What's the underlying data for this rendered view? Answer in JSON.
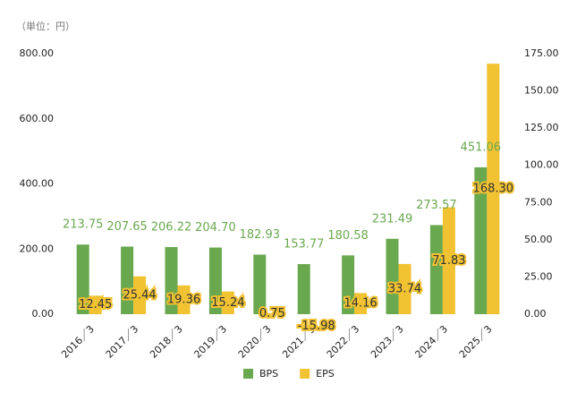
{
  "chart_data": {
    "type": "bar",
    "subtitle": "（単位：円）",
    "categories": [
      "2016／3",
      "2017／3",
      "2018／3",
      "2019／3",
      "2020／3",
      "2021／3",
      "2022／3",
      "2023／3",
      "2024／3",
      "2025／3"
    ],
    "series": [
      {
        "name": "BPS",
        "color": "#6aa84f",
        "values": [
          213.75,
          207.65,
          206.22,
          204.7,
          182.93,
          153.77,
          180.58,
          231.49,
          273.57,
          451.06
        ],
        "value_labels": [
          "213.75",
          "207.65",
          "206.22",
          "204.70",
          "182.93",
          "153.77",
          "180.58",
          "231.49",
          "273.57",
          "451.06"
        ]
      },
      {
        "name": "EPS",
        "color": "#f1c232",
        "axis": "y2",
        "values": [
          12.45,
          25.44,
          19.36,
          15.24,
          0.75,
          -15.98,
          14.16,
          33.74,
          71.83,
          168.3
        ],
        "value_labels": [
          "12.45",
          "25.44",
          "19.36",
          "15.24",
          "0.75",
          "-15.98",
          "14.16",
          "33.74",
          "71.83",
          "168.30"
        ]
      }
    ],
    "ylim": [
      0,
      800
    ],
    "yticks": [
      {
        "value": 0,
        "label": "0.00"
      },
      {
        "value": 200,
        "label": "200.00"
      },
      {
        "value": 400,
        "label": "400.00"
      },
      {
        "value": 600,
        "label": "600.00"
      },
      {
        "value": 800,
        "label": "800.00"
      }
    ],
    "y2lim": [
      0,
      175
    ],
    "y2ticks": [
      {
        "value": 0,
        "label": "0.00"
      },
      {
        "value": 25,
        "label": "25.00"
      },
      {
        "value": 50,
        "label": "50.00"
      },
      {
        "value": 75,
        "label": "75.00"
      },
      {
        "value": 100,
        "label": "100.00"
      },
      {
        "value": 125,
        "label": "125.00"
      },
      {
        "value": 150,
        "label": "150.00"
      },
      {
        "value": 175,
        "label": "175.00"
      }
    ],
    "legend": "bottom"
  }
}
